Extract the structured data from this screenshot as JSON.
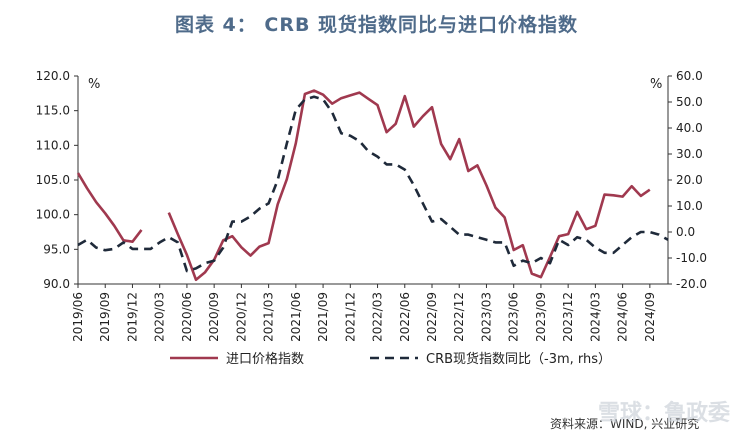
{
  "title": "图表 4： CRB 现货指数同比与进口价格指数",
  "source": "资料来源：WIND, 兴业研究",
  "watermark": "雪球：鲁政委",
  "chart_data": {
    "type": "line",
    "title": "图表 4： CRB 现货指数同比与进口价格指数",
    "left_unit": "%",
    "right_unit": "%",
    "y_left": {
      "lim": [
        90,
        120
      ],
      "ticks": [
        "90.0",
        "95.0",
        "100.0",
        "105.0",
        "110.0",
        "115.0",
        "120.0"
      ]
    },
    "y_right": {
      "lim": [
        -20,
        60
      ],
      "ticks": [
        "-20.0",
        "-10.0",
        "0.0",
        "10.0",
        "20.0",
        "30.0",
        "40.0",
        "50.0",
        "60.0"
      ]
    },
    "x": [
      "2019/06",
      "2019/07",
      "2019/08",
      "2019/09",
      "2019/10",
      "2019/11",
      "2019/12",
      "2020/01",
      "2020/02",
      "2020/03",
      "2020/04",
      "2020/05",
      "2020/06",
      "2020/07",
      "2020/08",
      "2020/09",
      "2020/10",
      "2020/11",
      "2020/12",
      "2021/01",
      "2021/02",
      "2021/03",
      "2021/04",
      "2021/05",
      "2021/06",
      "2021/07",
      "2021/08",
      "2021/09",
      "2021/10",
      "2021/11",
      "2021/12",
      "2022/01",
      "2022/02",
      "2022/03",
      "2022/04",
      "2022/05",
      "2022/06",
      "2022/07",
      "2022/08",
      "2022/09",
      "2022/10",
      "2022/11",
      "2022/12",
      "2023/01",
      "2023/02",
      "2023/03",
      "2023/04",
      "2023/05",
      "2023/06",
      "2023/07",
      "2023/08",
      "2023/09",
      "2023/10",
      "2023/11",
      "2023/12",
      "2024/01",
      "2024/02",
      "2024/03",
      "2024/04",
      "2024/05",
      "2024/06",
      "2024/07",
      "2024/08",
      "2024/09",
      "2024/10",
      "2024/11"
    ],
    "x_tick_labels": [
      "2019/06",
      "2019/09",
      "2019/12",
      "2020/03",
      "2020/06",
      "2020/09",
      "2020/12",
      "2021/03",
      "2021/06",
      "2021/09",
      "2021/12",
      "2022/03",
      "2022/06",
      "2022/09",
      "2022/12",
      "2023/03",
      "2023/06",
      "2023/09",
      "2023/12",
      "2024/03",
      "2024/06",
      "2024/09"
    ],
    "series": [
      {
        "name": "进口价格指数",
        "axis": "left",
        "color": "#a0394f",
        "style": "solid",
        "values": [
          106,
          103.8,
          101.8,
          100.2,
          98.4,
          96.3,
          96.1,
          97.8,
          null,
          null,
          100.3,
          97.2,
          94.2,
          90.6,
          91.7,
          93.5,
          96.3,
          96.9,
          95.3,
          94.1,
          95.4,
          95.9,
          101.5,
          105.1,
          110.3,
          117.4,
          117.9,
          117.3,
          116,
          116.8,
          117.2,
          117.6,
          116.7,
          115.8,
          111.9,
          113.1,
          117.1,
          112.7,
          114.2,
          115.5,
          110.2,
          108,
          110.9,
          106.3,
          107.1,
          104.2,
          101,
          99.6,
          94.9,
          95.6,
          91.5,
          91,
          93.9,
          96.9,
          97.2,
          100.4,
          97.9,
          98.4,
          102.9,
          102.8,
          102.6,
          104.1,
          102.7,
          103.6,
          null,
          null
        ]
      },
      {
        "name": "CRB现货指数同比（-3m, rhs）",
        "axis": "right",
        "color": "#1f2a3a",
        "style": "dashed",
        "values": [
          -5,
          -3,
          -6,
          -7,
          -6.5,
          -4,
          -6.5,
          -6.5,
          -6.5,
          -4,
          -2,
          -4,
          -15,
          -14,
          -12,
          -11,
          -6,
          4,
          4,
          6,
          9,
          11,
          20,
          34,
          47,
          51,
          52,
          51,
          46,
          38,
          37,
          35,
          31,
          29,
          26,
          26,
          24,
          18,
          11,
          4,
          5,
          2,
          -1,
          -1,
          -2,
          -3,
          -4,
          -4,
          -13,
          -11,
          -12,
          -10,
          -12,
          -3,
          -5,
          -2,
          -3,
          -6,
          -8,
          -8,
          -5,
          -2,
          0,
          0,
          -1,
          -3
        ]
      }
    ],
    "legend_position": "bottom-center",
    "grid": false
  }
}
